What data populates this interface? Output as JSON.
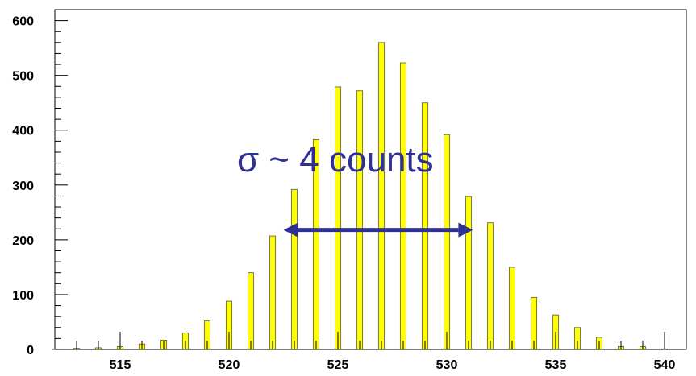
{
  "chart_data": {
    "type": "bar",
    "title": "",
    "xlabel": "",
    "ylabel": "",
    "xlim": [
      512,
      541
    ],
    "ylim": [
      0,
      620
    ],
    "x_ticks": [
      515,
      520,
      525,
      530,
      535,
      540
    ],
    "y_ticks": [
      0,
      100,
      200,
      300,
      400,
      500,
      600
    ],
    "bar_color": "#ffff00",
    "bar_edge_color": "#555555",
    "annotation_color": "#2e3192",
    "grid": false,
    "legend": "none",
    "series": [
      {
        "x": [
          512,
          513,
          514,
          515,
          516,
          517,
          518,
          519,
          520,
          521,
          522,
          523,
          524,
          525,
          526,
          527,
          528,
          529,
          530,
          531,
          532,
          533,
          534,
          535,
          536,
          537,
          538,
          539,
          540
        ],
        "values": [
          1,
          2,
          3,
          5,
          10,
          17,
          30,
          52,
          88,
          140,
          207,
          292,
          383,
          479,
          472,
          560,
          523,
          450,
          392,
          279,
          231,
          150,
          95,
          63,
          40,
          22,
          5,
          5,
          1
        ]
      }
    ],
    "annotation": {
      "text": "σ ~ 4 counts",
      "arrow": "double-headed",
      "arrow_from_x": 522.5,
      "arrow_to_x": 531.2,
      "arrow_y": 218,
      "text_x": 525,
      "text_y": 320
    }
  }
}
